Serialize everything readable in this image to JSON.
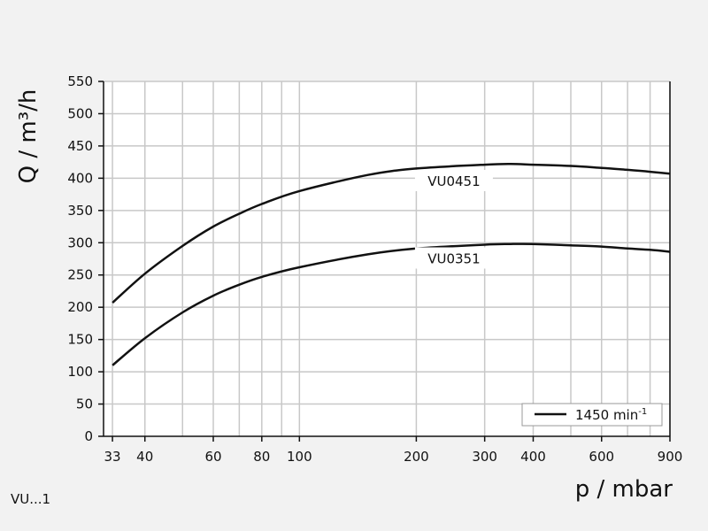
{
  "chart_data": {
    "type": "line",
    "title": "",
    "xlabel": "p / mbar",
    "ylabel": "Q / m³/h",
    "x_scale": "log",
    "xlim": [
      30,
      900
    ],
    "ylim": [
      0,
      550
    ],
    "x_ticks": [
      33,
      40,
      60,
      80,
      100,
      200,
      300,
      400,
      600,
      900
    ],
    "x_tick_labels": [
      "33",
      "40",
      "60",
      "80",
      "100",
      "200",
      "300",
      "400",
      "600",
      "900"
    ],
    "x_gridlines": [
      33,
      40,
      50,
      60,
      70,
      80,
      90,
      100,
      200,
      300,
      400,
      500,
      600,
      700,
      800,
      900
    ],
    "y_ticks": [
      0,
      50,
      100,
      150,
      200,
      250,
      300,
      350,
      400,
      450,
      500,
      550
    ],
    "y_tick_labels": [
      "0",
      "50",
      "100",
      "150",
      "200",
      "250",
      "300",
      "350",
      "400",
      "450",
      "500",
      "550"
    ],
    "grid": true,
    "series": [
      {
        "name": "VU0451",
        "x": [
          33,
          40,
          50,
          60,
          70,
          80,
          100,
          150,
          200,
          300,
          350,
          400,
          500,
          600,
          700,
          800,
          900
        ],
        "y": [
          207,
          252,
          295,
          325,
          345,
          360,
          380,
          405,
          415,
          421,
          422,
          421,
          419,
          416,
          413,
          410,
          407
        ]
      },
      {
        "name": "VU0351",
        "x": [
          33,
          40,
          50,
          60,
          70,
          80,
          100,
          150,
          200,
          300,
          350,
          400,
          500,
          600,
          700,
          800,
          900
        ],
        "y": [
          110,
          152,
          192,
          218,
          235,
          247,
          262,
          282,
          291,
          297,
          298,
          298,
          296,
          294,
          291,
          289,
          286
        ]
      }
    ],
    "legend": {
      "entries": [
        {
          "label": "1450 min-1",
          "text": "1450 min",
          "sup": "-1"
        }
      ],
      "placement": "bottom-right"
    },
    "footnote": "VU...1"
  }
}
